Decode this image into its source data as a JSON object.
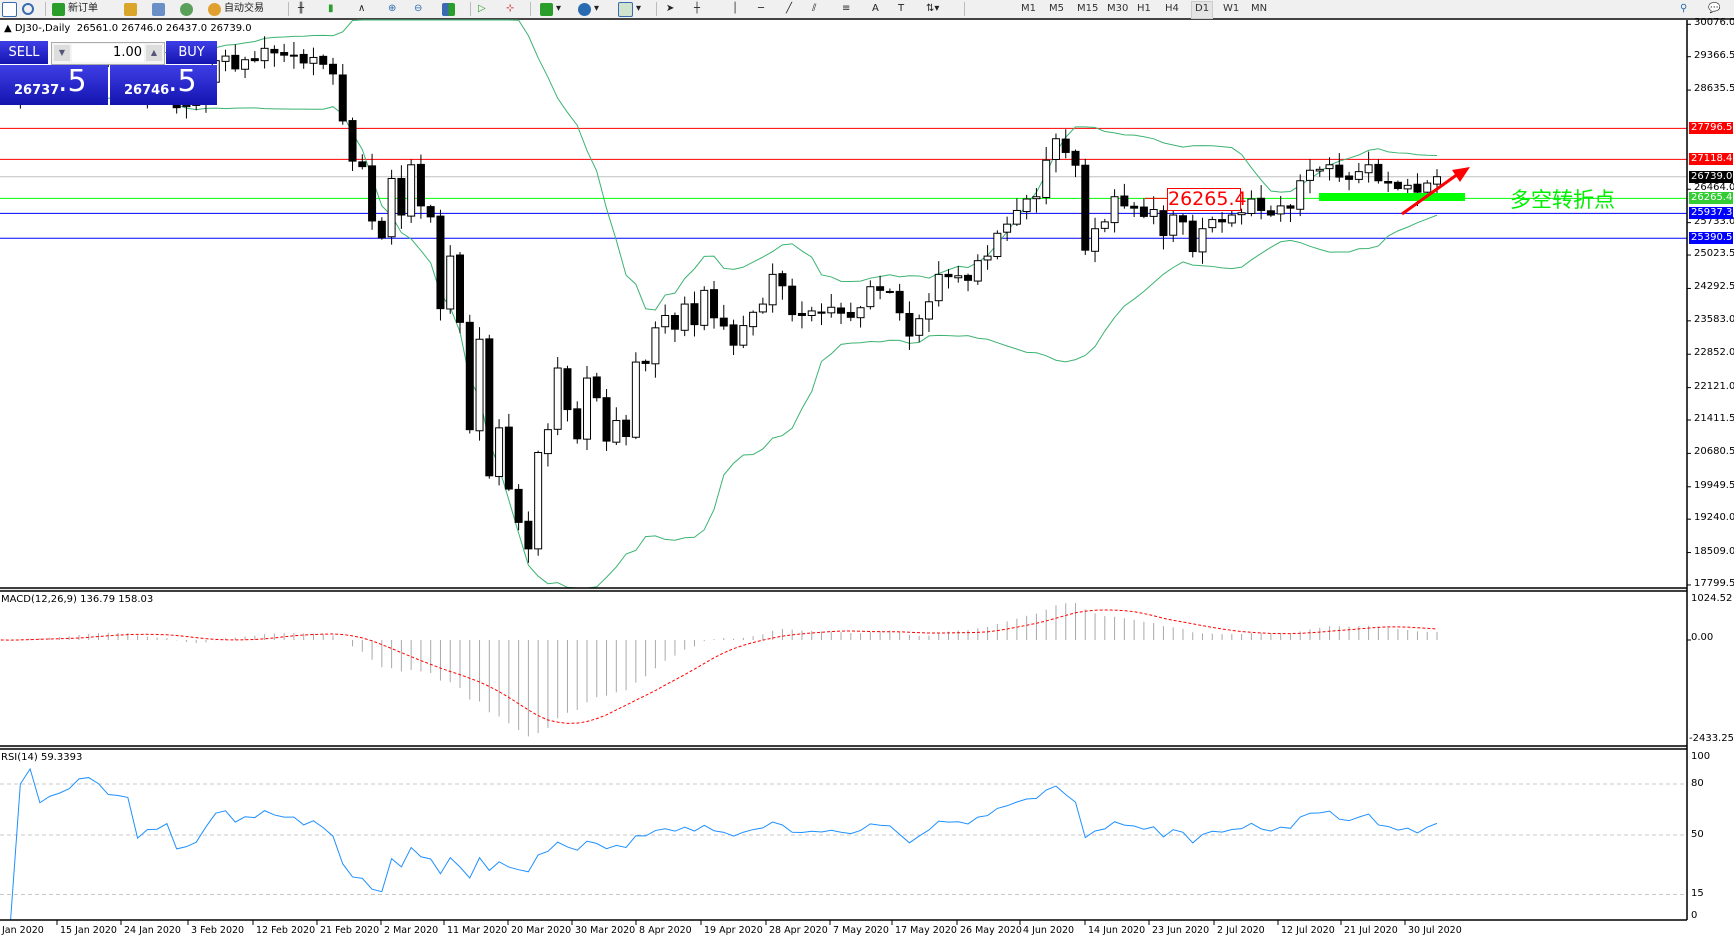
{
  "toolbar": {
    "new_order_label": "新订单",
    "auto_trading_label": "自动交易",
    "timeframes": [
      "M1",
      "M5",
      "M15",
      "M30",
      "H1",
      "H4",
      "D1",
      "W1",
      "MN"
    ],
    "active_timeframe": "D1"
  },
  "chart": {
    "symbol": "DJ30-,Daily",
    "ohlc": "26561.0 26746.0 26437.0 26739.0"
  },
  "trade_panel": {
    "sell_label": "SELL",
    "buy_label": "BUY",
    "lot": "1.00",
    "sell_price_main": "26737",
    "sell_price_frac": ".5",
    "buy_price_main": "26746",
    "buy_price_frac": ".5"
  },
  "price_axis": [
    "30076.0",
    "29366.5",
    "28635.5",
    "26464.0",
    "25733.0",
    "25023.5",
    "24292.5",
    "23583.0",
    "22852.0",
    "22121.0",
    "21411.5",
    "20680.5",
    "19949.5",
    "19240.0",
    "18509.0",
    "17799.5"
  ],
  "levels": [
    {
      "price": 27796.5,
      "label": "27796.5",
      "color": "#ff0000"
    },
    {
      "price": 27118.4,
      "label": "27118.4",
      "color": "#ff0000"
    },
    {
      "price": 26739.0,
      "label": "26739.0",
      "color": "#000000",
      "line_color": "#c0c0c0"
    },
    {
      "price": 26265.4,
      "label": "26265.4",
      "color": "#32cd32",
      "line_color": "#00ff00"
    },
    {
      "price": 25937.3,
      "label": "25937.3",
      "color": "#0000ff"
    },
    {
      "price": 25390.5,
      "label": "25390.5",
      "color": "#0000ff"
    }
  ],
  "annotations": {
    "price_box": "26265.4",
    "turning_point_text": "多空转折点",
    "accent_green": "#00ff00",
    "arrow_color": "#ff0000"
  },
  "macd": {
    "label": "MACD(12,26,9) 136.79 158.03",
    "axis": [
      "1024.52",
      "0.00",
      "-2433.25"
    ]
  },
  "rsi": {
    "label": "RSI(14) 59.3393",
    "axis": [
      "100",
      "80",
      "50",
      "15",
      "0"
    ]
  },
  "date_axis": [
    "Jan 2020",
    "15 Jan 2020",
    "24 Jan 2020",
    "3 Feb 2020",
    "12 Feb 2020",
    "21 Feb 2020",
    "2 Mar 2020",
    "11 Mar 2020",
    "20 Mar 2020",
    "30 Mar 2020",
    "8 Apr 2020",
    "19 Apr 2020",
    "28 Apr 2020",
    "7 May 2020",
    "17 May 2020",
    "26 May 2020",
    "4 Jun 2020",
    "14 Jun 2020",
    "23 Jun 2020",
    "2 Jul 2020",
    "12 Jul 2020",
    "21 Jul 2020",
    "30 Jul 2020"
  ],
  "chart_data": {
    "type": "candlestick",
    "price_range": [
      17799.5,
      30076.0
    ],
    "closes": [
      28600,
      28550,
      28750,
      28950,
      28820,
      28900,
      28950,
      29030,
      29300,
      29350,
      29300,
      29200,
      29190,
      29170,
      28530,
      28720,
      28730,
      28860,
      28250,
      28300,
      28400,
      28800,
      29280,
      29380,
      29100,
      29300,
      29280,
      29550,
      29450,
      29400,
      29400,
      29230,
      29350,
      29200,
      28990,
      27960,
      27080,
      26960,
      25770,
      25400,
      26700,
      25900,
      27000,
      26100,
      25860,
      23850,
      25000,
      23550,
      21200,
      23180,
      20190,
      21240,
      19900,
      19170,
      18590,
      20700,
      21200,
      22550,
      21640,
      21000,
      22330,
      21900,
      20950,
      21400,
      21050,
      22680,
      22650,
      23430,
      23700,
      23400,
      23950,
      23500,
      24250,
      23650,
      23470,
      23050,
      23480,
      23770,
      23950,
      24600,
      24350,
      23720,
      23700,
      23800,
      23750,
      23880,
      23750,
      23660,
      23870,
      24330,
      24250,
      24220,
      23760,
      23250,
      23630,
      24000,
      24600,
      24550,
      24570,
      24470,
      24900,
      25000,
      25500,
      25700,
      26000,
      26250,
      26300,
      27100,
      27570,
      27270,
      26990,
      25130,
      25600,
      25750,
      26300,
      26100,
      26050,
      25870,
      26020,
      25450,
      25900,
      25750,
      25100,
      25600,
      25800,
      25750,
      25900,
      25950,
      26250,
      26000,
      25900,
      26100,
      26050,
      26650,
      26880,
      26900,
      27000,
      26730,
      26680,
      26850,
      27000,
      26650,
      26600,
      26480,
      26550,
      26400,
      26600,
      26739
    ],
    "indicators": [
      "Bollinger Bands(20,2)",
      "MACD(12,26,9)",
      "RSI(14)"
    ],
    "colors": {
      "bands": "#3cb371",
      "rsi": "#1e90ff",
      "macd_signal": "#ff0000",
      "macd_hist": "#a9a9a9"
    }
  }
}
